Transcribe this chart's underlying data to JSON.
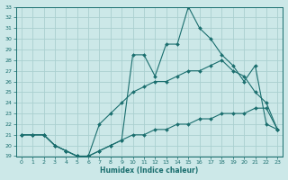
{
  "xlabel": "Humidex (Indice chaleur)",
  "background_color": "#cce8e8",
  "grid_color": "#aad0d0",
  "line_color": "#1a6e6e",
  "xlim": [
    -0.5,
    23.5
  ],
  "ylim": [
    19,
    33
  ],
  "yticks": [
    19,
    20,
    21,
    22,
    23,
    24,
    25,
    26,
    27,
    28,
    29,
    30,
    31,
    32,
    33
  ],
  "xticks": [
    0,
    1,
    2,
    3,
    4,
    5,
    6,
    7,
    8,
    9,
    10,
    11,
    12,
    13,
    14,
    15,
    16,
    17,
    18,
    19,
    20,
    21,
    22,
    23
  ],
  "line1_x": [
    0,
    1,
    2,
    3,
    4,
    5,
    6,
    7,
    8,
    9,
    10,
    11,
    12,
    13,
    14,
    15,
    16,
    17,
    18,
    19,
    20,
    21,
    22,
    23
  ],
  "line1_y": [
    21,
    21,
    21,
    20,
    19.5,
    19,
    19,
    19.5,
    20,
    20.5,
    21,
    21,
    21.5,
    21.5,
    22,
    22,
    22.5,
    22.5,
    23,
    23,
    23,
    23.5,
    23.5,
    21.5
  ],
  "line2_x": [
    0,
    1,
    2,
    3,
    4,
    5,
    6,
    7,
    8,
    9,
    10,
    11,
    12,
    13,
    14,
    15,
    16,
    17,
    18,
    19,
    20,
    21,
    22,
    23
  ],
  "line2_y": [
    21,
    21,
    21,
    20,
    19.5,
    19,
    19,
    22,
    23,
    24,
    25,
    25.5,
    26,
    26,
    26.5,
    27,
    27,
    27.5,
    28,
    27,
    26.5,
    25,
    24,
    21.5
  ],
  "line3_x": [
    0,
    1,
    2,
    3,
    4,
    5,
    6,
    7,
    8,
    9,
    10,
    11,
    12,
    13,
    14,
    15,
    16,
    17,
    18,
    19,
    20,
    21,
    22,
    23
  ],
  "line3_y": [
    21,
    21,
    21,
    20,
    19.5,
    19,
    19,
    19.5,
    20,
    20.5,
    28.5,
    28.5,
    26.5,
    29.5,
    29.5,
    33,
    31,
    30,
    28.5,
    27.5,
    26,
    27.5,
    22,
    21.5
  ]
}
